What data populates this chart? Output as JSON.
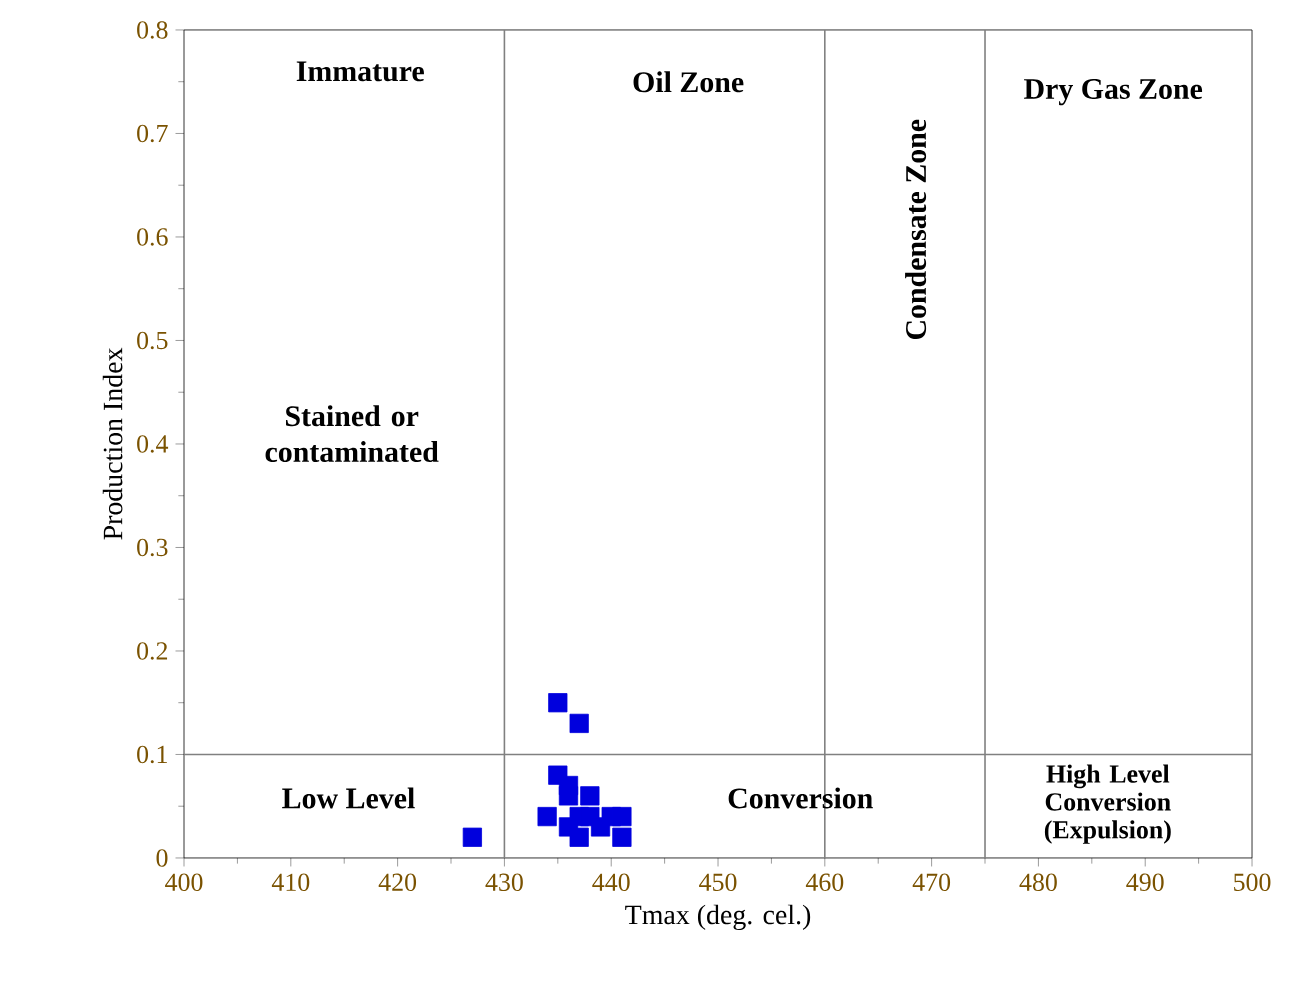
{
  "chart_data": {
    "type": "scatter",
    "xlabel": "Tmax (deg. cel.)",
    "ylabel": "Production Index",
    "xlim": [
      400,
      500
    ],
    "ylim": [
      0,
      0.8
    ],
    "xticks": [
      400,
      410,
      420,
      430,
      440,
      450,
      460,
      470,
      480,
      490,
      500
    ],
    "yticks": [
      0,
      0.1,
      0.2,
      0.3,
      0.4,
      0.5,
      0.6,
      0.7,
      0.8
    ],
    "grid": false,
    "marker": "square",
    "series": [
      {
        "color": "#0000dd",
        "x": [
          427,
          434,
          435,
          435,
          436,
          436,
          436,
          437,
          437,
          437,
          438,
          438,
          439,
          440,
          441,
          441
        ],
        "values": [
          0.02,
          0.04,
          0.08,
          0.15,
          0.07,
          0.06,
          0.03,
          0.13,
          0.04,
          0.02,
          0.06,
          0.04,
          0.03,
          0.04,
          0.04,
          0.02
        ]
      }
    ],
    "ref_lines": [
      {
        "axis": "x",
        "value": 430,
        "color": "#808080"
      },
      {
        "axis": "x",
        "value": 460,
        "color": "#808080"
      },
      {
        "axis": "x",
        "value": 475,
        "color": "#808080"
      },
      {
        "axis": "y",
        "value": 0.1,
        "color": "#808080"
      }
    ],
    "annotations": [
      "Immature",
      "Oil Zone",
      "Condensate Zone",
      "Dry Gas Zone",
      "Stained or contaminated",
      "Low Level",
      "Conversion",
      "High Level Conversion (Expulsion)"
    ]
  }
}
